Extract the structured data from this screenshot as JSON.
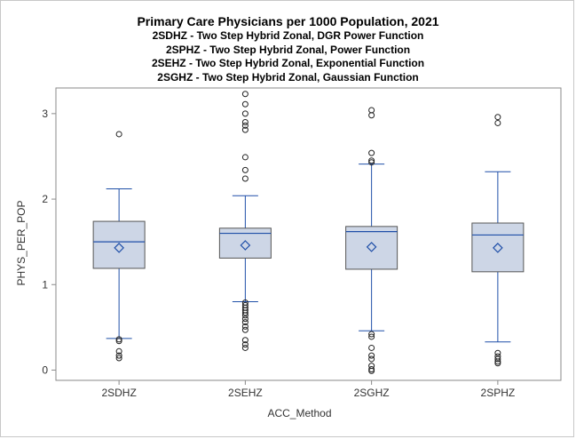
{
  "chart_data": {
    "type": "box",
    "title": "Primary Care Physicians per 1000 Population, 2021",
    "subtitles": [
      "2SDHZ - Two Step Hybrid Zonal, DGR Power Function",
      "2SPHZ - Two Step Hybrid Zonal, Power Function",
      "2SEHZ - Two Step Hybrid Zonal, Exponential Function",
      "2SGHZ - Two Step Hybrid Zonal, Gaussian Function"
    ],
    "xlabel": "ACC_Method",
    "ylabel": "PHYS_PER_POP",
    "ylim": [
      -0.12,
      3.3
    ],
    "yticks": [
      "0",
      "1",
      "2",
      "3"
    ],
    "categories": [
      "2SDHZ",
      "2SEHZ",
      "2SGHZ",
      "2SPHZ"
    ],
    "boxes": [
      {
        "category": "2SDHZ",
        "whisker_low": 0.37,
        "q1": 1.19,
        "median": 1.5,
        "q3": 1.74,
        "whisker_high": 2.12,
        "mean": 1.43,
        "outliers": [
          2.76,
          0.36,
          0.34,
          0.22,
          0.17,
          0.14
        ]
      },
      {
        "category": "2SEHZ",
        "whisker_low": 0.8,
        "q1": 1.31,
        "median": 1.6,
        "q3": 1.66,
        "whisker_high": 2.04,
        "mean": 1.46,
        "outliers": [
          3.23,
          3.11,
          3.0,
          2.9,
          2.86,
          2.81,
          2.49,
          2.34,
          2.24,
          0.79,
          0.76,
          0.73,
          0.7,
          0.67,
          0.64,
          0.6,
          0.56,
          0.51,
          0.47,
          0.35,
          0.3,
          0.26
        ]
      },
      {
        "category": "2SGHZ",
        "whisker_low": 0.46,
        "q1": 1.18,
        "median": 1.62,
        "q3": 1.68,
        "whisker_high": 2.41,
        "mean": 1.44,
        "outliers": [
          3.04,
          2.98,
          2.54,
          2.45,
          2.43,
          0.42,
          0.39,
          0.26,
          0.17,
          0.13,
          0.05,
          0.01,
          -0.01
        ]
      },
      {
        "category": "2SPHZ",
        "whisker_low": 0.33,
        "q1": 1.15,
        "median": 1.58,
        "q3": 1.72,
        "whisker_high": 2.32,
        "mean": 1.43,
        "outliers": [
          2.96,
          2.89,
          0.2,
          0.16,
          0.13,
          0.1,
          0.08
        ]
      }
    ],
    "colors": {
      "box_fill": "#cdd6e6",
      "box_stroke": "#1f4fa8",
      "frame": "#8a8a8a",
      "text": "#333333"
    },
    "grid": false,
    "legend": "none"
  }
}
